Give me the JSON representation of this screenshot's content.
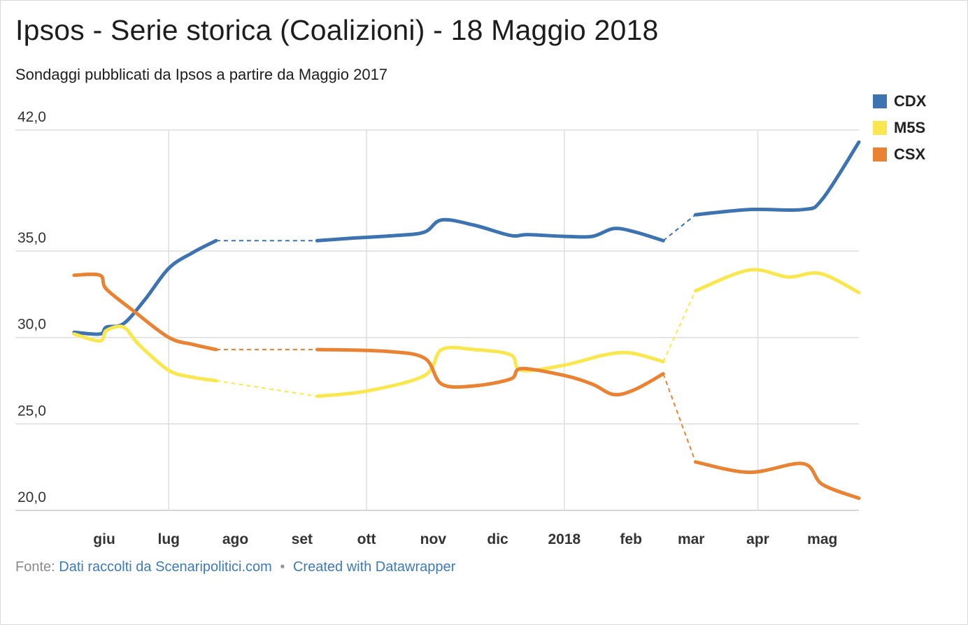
{
  "header": {
    "title": "Ipsos - Serie storica (Coalizioni) - 18 Maggio 2018",
    "subtitle": "Sondaggi pubblicati da Ipsos a partire da Maggio 2017"
  },
  "footer": {
    "source_prefix": "Fonte:",
    "source_link": "Dati raccolti da Scenaripolitici.com",
    "separator": "•",
    "credit_link": "Created with Datawrapper"
  },
  "chart_data": {
    "type": "line",
    "title": "Ipsos - Serie storica (Coalizioni) - 18 Maggio 2018",
    "subtitle": "Sondaggi pubblicati da Ipsos a partire da Maggio 2017",
    "ylim": [
      20,
      42
    ],
    "y_ticks": [
      {
        "value": 20,
        "label": "20,0"
      },
      {
        "value": 25,
        "label": "25,0"
      },
      {
        "value": 30,
        "label": "30,0"
      },
      {
        "value": 35,
        "label": "35,0"
      },
      {
        "value": 42,
        "label": "42,0"
      }
    ],
    "xlim": [
      "2017-05-18",
      "2018-05-18"
    ],
    "x_ticks": [
      {
        "date": "2017-06-01",
        "label": "giu",
        "gridline": false
      },
      {
        "date": "2017-07-01",
        "label": "lug",
        "gridline": true
      },
      {
        "date": "2017-08-01",
        "label": "ago",
        "gridline": false
      },
      {
        "date": "2017-09-01",
        "label": "set",
        "gridline": false
      },
      {
        "date": "2017-10-01",
        "label": "ott",
        "gridline": true
      },
      {
        "date": "2017-11-01",
        "label": "nov",
        "gridline": false
      },
      {
        "date": "2017-12-01",
        "label": "dic",
        "gridline": false
      },
      {
        "date": "2018-01-01",
        "label": "2018",
        "gridline": true
      },
      {
        "date": "2018-02-01",
        "label": "feb",
        "gridline": false
      },
      {
        "date": "2018-03-01",
        "label": "mar",
        "gridline": false
      },
      {
        "date": "2018-04-01",
        "label": "apr",
        "gridline": true
      },
      {
        "date": "2018-05-01",
        "label": "mag",
        "gridline": false
      }
    ],
    "grid": true,
    "legend_position": "top-right",
    "gaps": [
      [
        "2017-07-23",
        "2017-09-08"
      ],
      [
        "2018-02-16",
        "2018-03-03"
      ]
    ],
    "series": [
      {
        "name": "CDX",
        "color": "#3c73b0",
        "points": [
          [
            "2017-05-18",
            30.3
          ],
          [
            "2017-05-30",
            30.2
          ],
          [
            "2017-06-02",
            30.6
          ],
          [
            "2017-06-10",
            30.8
          ],
          [
            "2017-06-20",
            32.2
          ],
          [
            "2017-07-01",
            34.0
          ],
          [
            "2017-07-12",
            34.9
          ],
          [
            "2017-07-23",
            35.6
          ],
          [
            "2017-09-08",
            35.6
          ],
          [
            "2017-09-25",
            35.75
          ],
          [
            "2017-10-15",
            35.9
          ],
          [
            "2017-10-28",
            36.1
          ],
          [
            "2017-11-05",
            36.8
          ],
          [
            "2017-11-20",
            36.5
          ],
          [
            "2017-12-07",
            35.9
          ],
          [
            "2017-12-15",
            35.95
          ],
          [
            "2018-01-01",
            35.85
          ],
          [
            "2018-01-14",
            35.85
          ],
          [
            "2018-01-24",
            36.3
          ],
          [
            "2018-02-03",
            36.1
          ],
          [
            "2018-02-16",
            35.6
          ],
          [
            "2018-03-03",
            37.1
          ],
          [
            "2018-03-28",
            37.4
          ],
          [
            "2018-04-22",
            37.4
          ],
          [
            "2018-05-01",
            38.0
          ],
          [
            "2018-05-18",
            41.3
          ]
        ]
      },
      {
        "name": "M5S",
        "color": "#f9e74f",
        "points": [
          [
            "2017-05-18",
            30.2
          ],
          [
            "2017-05-30",
            29.8
          ],
          [
            "2017-06-02",
            30.4
          ],
          [
            "2017-06-10",
            30.6
          ],
          [
            "2017-06-17",
            29.6
          ],
          [
            "2017-07-01",
            28.1
          ],
          [
            "2017-07-12",
            27.7
          ],
          [
            "2017-07-23",
            27.5
          ],
          [
            "2017-09-08",
            26.6
          ],
          [
            "2017-10-01",
            26.9
          ],
          [
            "2017-10-28",
            27.8
          ],
          [
            "2017-11-05",
            29.3
          ],
          [
            "2017-11-20",
            29.3
          ],
          [
            "2017-12-07",
            29.0
          ],
          [
            "2017-12-12",
            28.1
          ],
          [
            "2018-01-01",
            28.4
          ],
          [
            "2018-01-20",
            29.0
          ],
          [
            "2018-02-01",
            29.1
          ],
          [
            "2018-02-16",
            28.6
          ],
          [
            "2018-03-03",
            32.7
          ],
          [
            "2018-03-28",
            33.9
          ],
          [
            "2018-04-15",
            33.5
          ],
          [
            "2018-04-30",
            33.7
          ],
          [
            "2018-05-18",
            32.6
          ]
        ]
      },
      {
        "name": "CSX",
        "color": "#ea8234",
        "points": [
          [
            "2017-05-18",
            33.6
          ],
          [
            "2017-05-30",
            33.6
          ],
          [
            "2017-06-02",
            32.8
          ],
          [
            "2017-06-15",
            31.5
          ],
          [
            "2017-07-01",
            30.0
          ],
          [
            "2017-07-12",
            29.6
          ],
          [
            "2017-07-23",
            29.3
          ],
          [
            "2017-09-08",
            29.3
          ],
          [
            "2017-10-10",
            29.2
          ],
          [
            "2017-10-28",
            28.8
          ],
          [
            "2017-11-05",
            27.3
          ],
          [
            "2017-11-20",
            27.2
          ],
          [
            "2017-12-07",
            27.6
          ],
          [
            "2017-12-12",
            28.2
          ],
          [
            "2018-01-01",
            27.8
          ],
          [
            "2018-01-14",
            27.3
          ],
          [
            "2018-01-24",
            26.7
          ],
          [
            "2018-02-03",
            27.0
          ],
          [
            "2018-02-16",
            27.9
          ],
          [
            "2018-03-03",
            22.8
          ],
          [
            "2018-03-28",
            22.2
          ],
          [
            "2018-04-22",
            22.7
          ],
          [
            "2018-05-01",
            21.5
          ],
          [
            "2018-05-18",
            20.7
          ]
        ]
      }
    ]
  }
}
